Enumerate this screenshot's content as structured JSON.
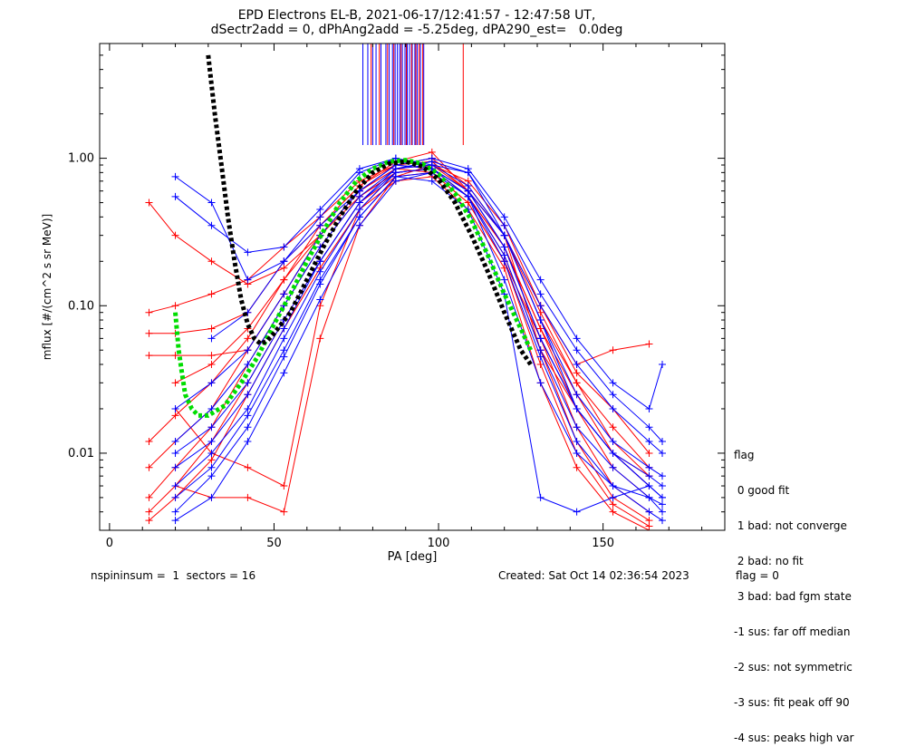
{
  "title_line1": "EPD Electrons EL-B, 2021-06-17/12:41:57 - 12:47:58 UT,",
  "title_line2": "dSectr2add = 0, dPhAng2add = -5.25deg, dPA290_est=   0.0deg",
  "legend": {
    "heading": "flag",
    "items": [
      " 0 good fit",
      " 1 bad: not converge",
      " 2 bad: no fit",
      " 3 bad: bad fgm state",
      "-1 sus: far off median",
      "-2 sus: not symmetric",
      "-3 sus: fit peak off 90",
      "-4 sus: peaks high var"
    ]
  },
  "footer": {
    "left": "nspininsum =  1  sectors = 16",
    "created": "Created: Sat Oct 14 02:36:54 2023",
    "flag": "flag = 0"
  },
  "chart_data": {
    "type": "line",
    "xlabel": "PA [deg]",
    "ylabel": "mflux [#/(cm^2 s sr MeV)]",
    "xlim": [
      -3,
      187
    ],
    "ylim": [
      0.003,
      6
    ],
    "ylog": true,
    "xticks": [
      0,
      50,
      100,
      150
    ],
    "xtick_labels": [
      "0",
      "50",
      "100",
      "150"
    ],
    "yticks": [
      0.01,
      0.1,
      1.0
    ],
    "ytick_labels": [
      "0.01",
      "0.10",
      "1.00"
    ],
    "grid": false,
    "colors": {
      "axes": "#000000",
      "red": "#ff0000",
      "blue": "#0000ff",
      "green_fit": "#00dd00",
      "black_fit": "#000000"
    },
    "series": [
      {
        "color": "red",
        "x": [
          12,
          20,
          31,
          42,
          53,
          64,
          76,
          87,
          98,
          109,
          120,
          131,
          142,
          153,
          164
        ],
        "y": [
          0.5,
          0.3,
          0.2,
          0.14,
          0.18,
          0.3,
          0.6,
          0.85,
          0.8,
          0.5,
          0.2,
          0.06,
          0.02,
          0.008,
          0.005
        ]
      },
      {
        "color": "red",
        "x": [
          12,
          20,
          31,
          42,
          53,
          64,
          76,
          87,
          98,
          109,
          120,
          131,
          142,
          153,
          164
        ],
        "y": [
          0.09,
          0.1,
          0.12,
          0.15,
          0.25,
          0.4,
          0.7,
          0.9,
          0.85,
          0.55,
          0.25,
          0.07,
          0.025,
          0.01,
          0.006
        ]
      },
      {
        "color": "red",
        "x": [
          12,
          20,
          31,
          42,
          53,
          64,
          76,
          87,
          98,
          109,
          120,
          131,
          142,
          153,
          164
        ],
        "y": [
          0.065,
          0.065,
          0.07,
          0.09,
          0.2,
          0.35,
          0.65,
          0.95,
          1.1,
          0.6,
          0.3,
          0.05,
          0.02,
          0.01,
          0.006
        ]
      },
      {
        "color": "red",
        "x": [
          12,
          20,
          31,
          42,
          53,
          64,
          76,
          87,
          98,
          109,
          120,
          131,
          142,
          153,
          164
        ],
        "y": [
          0.046,
          0.046,
          0.046,
          0.05,
          0.12,
          0.3,
          0.6,
          0.9,
          0.95,
          0.6,
          0.3,
          0.08,
          0.03,
          0.012,
          0.007
        ]
      },
      {
        "color": "red",
        "x": [
          12,
          20,
          31,
          42,
          53,
          64,
          76,
          87,
          98,
          109,
          120,
          131,
          142,
          153,
          164
        ],
        "y": [
          0.008,
          0.012,
          0.02,
          0.05,
          0.12,
          0.3,
          0.6,
          0.85,
          0.9,
          0.6,
          0.25,
          0.06,
          0.015,
          0.006,
          0.004
        ]
      },
      {
        "color": "red",
        "x": [
          12,
          20,
          31,
          42,
          53,
          64,
          76,
          87,
          98,
          109,
          120,
          131,
          142,
          153,
          164
        ],
        "y": [
          0.005,
          0.008,
          0.015,
          0.04,
          0.1,
          0.25,
          0.55,
          0.8,
          0.85,
          0.55,
          0.22,
          0.05,
          0.012,
          0.005,
          0.0035
        ]
      },
      {
        "color": "red",
        "x": [
          12,
          20,
          31,
          42,
          53,
          64,
          76,
          87,
          98,
          109,
          120,
          131,
          142,
          153,
          164
        ],
        "y": [
          0.004,
          0.006,
          0.012,
          0.03,
          0.08,
          0.2,
          0.5,
          0.75,
          0.8,
          0.5,
          0.2,
          0.04,
          0.01,
          0.0045,
          0.0032
        ]
      },
      {
        "color": "red",
        "x": [
          12,
          20,
          31,
          42,
          53,
          64,
          76,
          87,
          98,
          109,
          120,
          131,
          142,
          153,
          164
        ],
        "y": [
          0.0035,
          0.005,
          0.009,
          0.025,
          0.07,
          0.18,
          0.45,
          0.7,
          0.75,
          0.45,
          0.18,
          0.03,
          0.008,
          0.004,
          0.003
        ]
      },
      {
        "color": "red",
        "x": [
          20,
          31,
          42,
          53,
          64,
          76,
          87,
          98,
          109,
          120,
          131,
          142,
          153,
          164
        ],
        "y": [
          0.02,
          0.01,
          0.008,
          0.006,
          0.1,
          0.45,
          0.8,
          0.85,
          0.6,
          0.3,
          0.09,
          0.03,
          0.015,
          0.008
        ]
      },
      {
        "color": "red",
        "x": [
          20,
          31,
          42,
          53,
          64,
          76,
          87,
          98,
          109,
          120,
          131,
          142,
          153,
          164
        ],
        "y": [
          0.006,
          0.005,
          0.005,
          0.004,
          0.06,
          0.35,
          0.75,
          0.9,
          0.7,
          0.35,
          0.1,
          0.035,
          0.02,
          0.01
        ]
      },
      {
        "color": "red",
        "x": [
          12,
          20,
          31,
          42,
          53,
          64,
          76,
          87,
          98,
          109,
          120,
          131,
          142,
          153,
          164
        ],
        "y": [
          0.012,
          0.018,
          0.03,
          0.06,
          0.15,
          0.35,
          0.65,
          0.9,
          1.0,
          0.65,
          0.3,
          0.1,
          0.04,
          0.05,
          0.055
        ]
      },
      {
        "color": "red",
        "x": [
          20,
          31,
          42,
          53,
          64,
          76,
          87,
          98,
          109,
          120,
          131,
          142,
          153,
          164
        ],
        "y": [
          0.03,
          0.04,
          0.07,
          0.15,
          0.3,
          0.55,
          0.8,
          0.85,
          0.55,
          0.25,
          0.07,
          0.02,
          0.01,
          0.007
        ]
      },
      {
        "color": "blue",
        "x": [
          20,
          31,
          42,
          53,
          64,
          76,
          87,
          98,
          109,
          120,
          131,
          142,
          153,
          164,
          168
        ],
        "y": [
          0.75,
          0.5,
          0.15,
          0.2,
          0.4,
          0.8,
          1.0,
          0.9,
          0.8,
          0.3,
          0.08,
          0.02,
          0.01,
          0.007,
          0.006
        ]
      },
      {
        "color": "blue",
        "x": [
          20,
          31,
          42,
          53,
          64,
          76,
          87,
          98,
          109,
          120,
          131,
          142,
          153,
          164,
          168
        ],
        "y": [
          0.55,
          0.35,
          0.23,
          0.25,
          0.45,
          0.85,
          1.0,
          0.85,
          0.6,
          0.25,
          0.06,
          0.02,
          0.01,
          0.006,
          0.005
        ]
      },
      {
        "color": "blue",
        "x": [
          20,
          31,
          42,
          53,
          64,
          76,
          87,
          98,
          109,
          120,
          131,
          142,
          153,
          164,
          168
        ],
        "y": [
          0.02,
          0.03,
          0.05,
          0.12,
          0.3,
          0.6,
          0.9,
          0.85,
          0.6,
          0.3,
          0.1,
          0.04,
          0.02,
          0.012,
          0.01
        ]
      },
      {
        "color": "blue",
        "x": [
          20,
          31,
          42,
          53,
          64,
          76,
          87,
          98,
          109,
          120,
          131,
          142,
          153,
          164,
          168
        ],
        "y": [
          0.01,
          0.015,
          0.03,
          0.08,
          0.2,
          0.5,
          0.85,
          0.9,
          0.65,
          0.3,
          0.08,
          0.025,
          0.012,
          0.008,
          0.007
        ]
      },
      {
        "color": "blue",
        "x": [
          20,
          31,
          42,
          53,
          64,
          76,
          87,
          98,
          109,
          120,
          131,
          142,
          153,
          164,
          168
        ],
        "y": [
          0.006,
          0.01,
          0.02,
          0.06,
          0.17,
          0.45,
          0.8,
          0.85,
          0.6,
          0.25,
          0.06,
          0.02,
          0.01,
          0.006,
          0.005
        ]
      },
      {
        "color": "blue",
        "x": [
          20,
          31,
          42,
          53,
          64,
          76,
          87,
          98,
          109,
          120,
          131,
          142,
          153,
          164,
          168
        ],
        "y": [
          0.004,
          0.007,
          0.015,
          0.045,
          0.14,
          0.4,
          0.75,
          0.8,
          0.55,
          0.22,
          0.05,
          0.015,
          0.008,
          0.005,
          0.0045
        ]
      },
      {
        "color": "blue",
        "x": [
          20,
          31,
          42,
          53,
          64,
          76,
          87,
          98,
          109,
          120,
          131,
          142,
          153,
          164,
          168
        ],
        "y": [
          0.0035,
          0.005,
          0.012,
          0.035,
          0.11,
          0.35,
          0.7,
          0.8,
          0.55,
          0.2,
          0.045,
          0.012,
          0.006,
          0.004,
          0.0035
        ]
      },
      {
        "color": "blue",
        "x": [
          20,
          31,
          42,
          53,
          64,
          76,
          87,
          98,
          109,
          120,
          131,
          142,
          153,
          164,
          168
        ],
        "y": [
          0.012,
          0.02,
          0.04,
          0.1,
          0.25,
          0.55,
          0.85,
          0.95,
          0.8,
          0.35,
          0.12,
          0.05,
          0.025,
          0.015,
          0.012
        ]
      },
      {
        "color": "blue",
        "x": [
          20,
          31,
          42,
          53,
          64,
          76,
          87,
          98,
          109,
          120,
          131,
          142,
          153,
          164,
          168
        ],
        "y": [
          0.008,
          0.012,
          0.025,
          0.07,
          0.2,
          0.5,
          0.8,
          0.85,
          0.55,
          0.15,
          0.03,
          0.01,
          0.006,
          0.005,
          0.004
        ]
      },
      {
        "color": "blue",
        "x": [
          31,
          42,
          53,
          64,
          76,
          87,
          98,
          109,
          120,
          131,
          142,
          153,
          164,
          168
        ],
        "y": [
          0.06,
          0.09,
          0.2,
          0.35,
          0.6,
          0.9,
          1.0,
          0.85,
          0.4,
          0.15,
          0.06,
          0.03,
          0.02,
          0.04
        ]
      },
      {
        "color": "blue",
        "x": [
          20,
          31,
          42,
          53,
          64,
          76,
          87,
          98,
          109,
          120,
          131,
          142,
          153,
          164
        ],
        "y": [
          0.005,
          0.008,
          0.018,
          0.05,
          0.15,
          0.4,
          0.75,
          0.7,
          0.45,
          0.12,
          0.005,
          0.004,
          0.005,
          0.006
        ]
      }
    ],
    "fits": [
      {
        "color": "green_fit",
        "x": [
          20,
          21,
          22,
          23,
          25,
          27,
          30,
          35,
          40,
          45,
          50,
          55,
          60,
          65,
          70,
          75,
          80,
          85,
          90,
          95,
          100,
          105,
          110,
          115,
          120,
          125,
          128
        ],
        "y": [
          0.09,
          0.05,
          0.035,
          0.025,
          0.02,
          0.018,
          0.018,
          0.021,
          0.03,
          0.045,
          0.075,
          0.12,
          0.2,
          0.32,
          0.5,
          0.7,
          0.85,
          0.95,
          0.97,
          0.92,
          0.78,
          0.58,
          0.38,
          0.22,
          0.12,
          0.07,
          0.05
        ]
      },
      {
        "color": "black_fit",
        "x": [
          30,
          32,
          34,
          36,
          38,
          40,
          42,
          44,
          46,
          48,
          50,
          55,
          60,
          65,
          70,
          75,
          80,
          85,
          90,
          95,
          100,
          105,
          110,
          115,
          120,
          125,
          128
        ],
        "y": [
          5.0,
          2.0,
          0.9,
          0.4,
          0.2,
          0.11,
          0.075,
          0.06,
          0.055,
          0.058,
          0.065,
          0.09,
          0.15,
          0.25,
          0.4,
          0.6,
          0.8,
          0.92,
          0.95,
          0.88,
          0.72,
          0.5,
          0.3,
          0.17,
          0.09,
          0.05,
          0.04
        ]
      }
    ],
    "vertical_lines": [
      {
        "color": "blue",
        "x": [
          77,
          78.5,
          80,
          81,
          82.5,
          84,
          85,
          86,
          86.8,
          87.5,
          88.2,
          89,
          89.8,
          90.5,
          91.2,
          92,
          92.8,
          93.5,
          94.5,
          95.5
        ]
      },
      {
        "color": "red",
        "x": [
          79.5,
          82,
          84.5,
          86.4,
          88.6,
          90.2,
          91.8,
          93.1,
          94.1,
          95.2,
          107.5
        ]
      }
    ]
  }
}
